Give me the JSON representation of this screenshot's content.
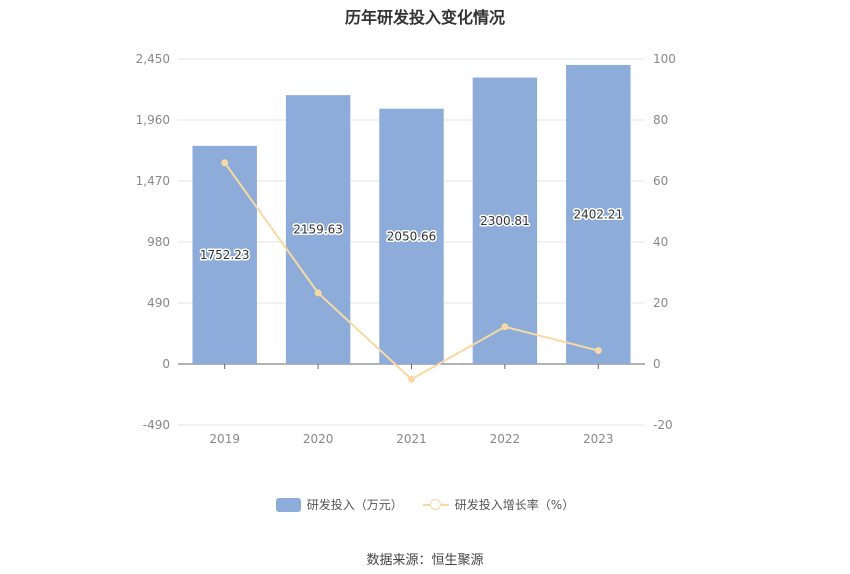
{
  "chart_data": {
    "type": "bar",
    "title": "历年研发投入变化情况",
    "categories": [
      "2019",
      "2020",
      "2021",
      "2022",
      "2023"
    ],
    "series": [
      {
        "name": "研发投入（万元）",
        "type": "bar",
        "axis": "left",
        "values": [
          1752.23,
          2159.63,
          2050.66,
          2300.81,
          2402.21
        ],
        "labels": [
          "1752.23",
          "2159.63",
          "2050.66",
          "2300.81",
          "2402.21"
        ],
        "color": "#8eacd9"
      },
      {
        "name": "研发投入增长率（%）",
        "type": "line",
        "axis": "right",
        "values": [
          66.0,
          23.3,
          -5.0,
          12.2,
          4.4
        ],
        "color": "#f7d9a4"
      }
    ],
    "y_left": {
      "min": -490,
      "max": 2450,
      "ticks": [
        -490,
        0,
        490,
        980,
        1470,
        1960,
        2450
      ],
      "tick_labels": [
        "-490",
        "0",
        "490",
        "980",
        "1,470",
        "1,960",
        "2,450"
      ]
    },
    "y_right": {
      "min": -20,
      "max": 100,
      "ticks": [
        -20,
        0,
        20,
        40,
        60,
        80,
        100
      ],
      "tick_labels": [
        "-20",
        "0",
        "20",
        "40",
        "60",
        "80",
        "100"
      ]
    },
    "grid": true,
    "legend_position": "bottom"
  },
  "legend": {
    "bar_label": "研发投入（万元）",
    "line_label": "研发投入增长率（%）"
  },
  "source": "数据来源：恒生聚源"
}
